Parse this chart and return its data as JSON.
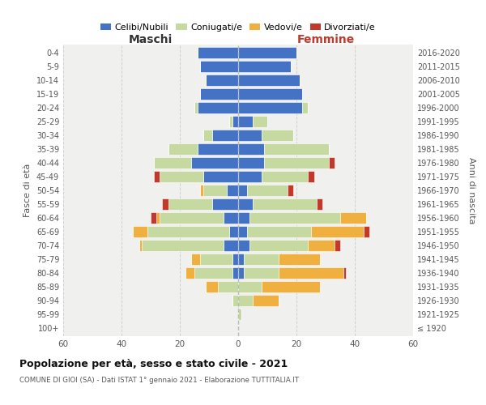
{
  "age_groups": [
    "100+",
    "95-99",
    "90-94",
    "85-89",
    "80-84",
    "75-79",
    "70-74",
    "65-69",
    "60-64",
    "55-59",
    "50-54",
    "45-49",
    "40-44",
    "35-39",
    "30-34",
    "25-29",
    "20-24",
    "15-19",
    "10-14",
    "5-9",
    "0-4"
  ],
  "birth_years": [
    "≤ 1920",
    "1921-1925",
    "1926-1930",
    "1931-1935",
    "1936-1940",
    "1941-1945",
    "1946-1950",
    "1951-1955",
    "1956-1960",
    "1961-1965",
    "1966-1970",
    "1971-1975",
    "1976-1980",
    "1981-1985",
    "1986-1990",
    "1991-1995",
    "1996-2000",
    "2001-2005",
    "2006-2010",
    "2011-2015",
    "2016-2020"
  ],
  "maschi": {
    "celibi": [
      0,
      0,
      0,
      0,
      2,
      2,
      5,
      3,
      5,
      9,
      4,
      12,
      16,
      14,
      9,
      2,
      14,
      13,
      11,
      13,
      14
    ],
    "coniugati": [
      0,
      0,
      2,
      7,
      13,
      11,
      28,
      28,
      22,
      15,
      8,
      15,
      13,
      10,
      3,
      1,
      1,
      0,
      0,
      0,
      0
    ],
    "vedovi": [
      0,
      0,
      0,
      4,
      3,
      3,
      1,
      5,
      1,
      0,
      1,
      0,
      0,
      0,
      0,
      0,
      0,
      0,
      0,
      0,
      0
    ],
    "divorziati": [
      0,
      0,
      0,
      0,
      0,
      0,
      0,
      0,
      2,
      2,
      0,
      2,
      0,
      0,
      0,
      0,
      0,
      0,
      0,
      0,
      0
    ]
  },
  "femmine": {
    "nubili": [
      0,
      0,
      0,
      0,
      2,
      2,
      4,
      3,
      4,
      5,
      3,
      8,
      9,
      9,
      8,
      5,
      22,
      22,
      21,
      18,
      20
    ],
    "coniugate": [
      0,
      1,
      5,
      8,
      12,
      12,
      20,
      22,
      31,
      22,
      14,
      16,
      22,
      22,
      11,
      5,
      2,
      0,
      0,
      0,
      0
    ],
    "vedove": [
      0,
      0,
      9,
      20,
      22,
      14,
      9,
      18,
      9,
      0,
      0,
      0,
      0,
      0,
      0,
      0,
      0,
      0,
      0,
      0,
      0
    ],
    "divorziate": [
      0,
      0,
      0,
      0,
      1,
      0,
      2,
      2,
      0,
      2,
      2,
      2,
      2,
      0,
      0,
      0,
      0,
      0,
      0,
      0,
      0
    ]
  },
  "colors": {
    "celibi": "#4472c4",
    "coniugati": "#c5d9a0",
    "vedovi": "#f0b040",
    "divorziati": "#c0392b"
  },
  "xlim": 60,
  "title_main": "Popolazione per età, sesso e stato civile - 2021",
  "title_sub": "COMUNE DI GIOI (SA) - Dati ISTAT 1° gennaio 2021 - Elaborazione TUTTITALIA.IT",
  "ylabel_left": "Fasce di età",
  "ylabel_right": "Anni di nascita",
  "label_maschi": "Maschi",
  "label_femmine": "Femmine",
  "bg_color": "#f0f0ee",
  "legend_labels": [
    "Celibi/Nubili",
    "Coniugati/e",
    "Vedovi/e",
    "Divorziati/e"
  ]
}
